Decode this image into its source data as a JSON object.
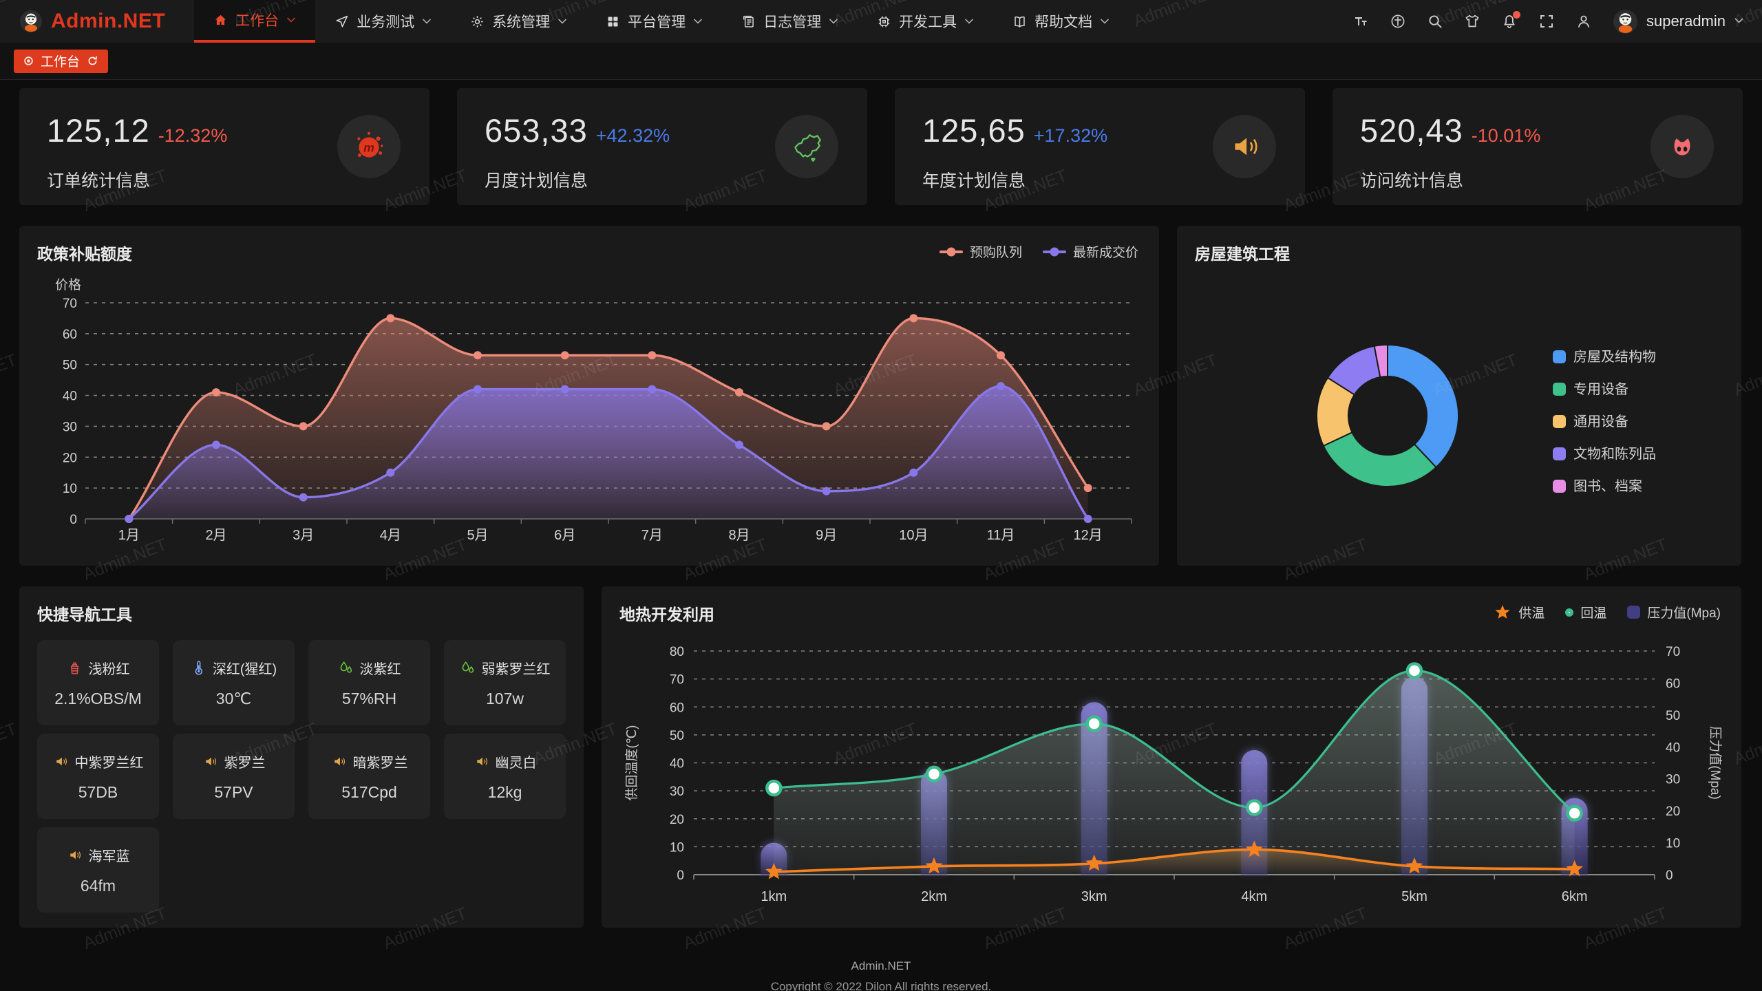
{
  "navbar": {
    "logo_text": "Admin.NET",
    "menu": [
      {
        "label": "工作台",
        "icon": "home-icon",
        "active": true
      },
      {
        "label": "业务测试",
        "icon": "send-icon",
        "active": false
      },
      {
        "label": "系统管理",
        "icon": "gear-icon",
        "active": false
      },
      {
        "label": "平台管理",
        "icon": "grid-icon",
        "active": false
      },
      {
        "label": "日志管理",
        "icon": "log-icon",
        "active": false
      },
      {
        "label": "开发工具",
        "icon": "cpu-icon",
        "active": false
      },
      {
        "label": "帮助文档",
        "icon": "book-icon",
        "active": false
      }
    ],
    "action_icons": [
      "font-size-icon",
      "language-icon",
      "search-icon",
      "theme-icon",
      "bell-icon",
      "fullscreen-icon",
      "user-icon"
    ],
    "notification_dot_on": "bell-icon",
    "username": "superadmin"
  },
  "tabbar": {
    "tabs": [
      {
        "label": "工作台",
        "active": true,
        "icons": [
          "dot-icon",
          "refresh-icon"
        ]
      }
    ]
  },
  "stat_cards": [
    {
      "value": "125,12",
      "delta": "-12.32%",
      "trend": "down",
      "label": "订单统计信息",
      "icon": "meetup-icon"
    },
    {
      "value": "653,33",
      "delta": "+42.32%",
      "trend": "up",
      "label": "月度计划信息",
      "icon": "china-map-icon"
    },
    {
      "value": "125,65",
      "delta": "+17.32%",
      "trend": "up",
      "label": "年度计划信息",
      "icon": "speaker-icon"
    },
    {
      "value": "520,43",
      "delta": "-10.01%",
      "trend": "down",
      "label": "访问统计信息",
      "icon": "cat-icon"
    }
  ],
  "panels": {
    "subsidy": {
      "title": "政策补贴额度"
    },
    "building": {
      "title": "房屋建筑工程"
    },
    "quick_nav": {
      "title": "快捷导航工具"
    },
    "geothermal": {
      "title": "地热开发利用"
    }
  },
  "chart_data": [
    {
      "type": "area",
      "title": "政策补贴额度",
      "ylabel": "价格",
      "categories": [
        "1月",
        "2月",
        "3月",
        "4月",
        "5月",
        "6月",
        "7月",
        "8月",
        "9月",
        "10月",
        "11月",
        "12月"
      ],
      "ylim": [
        0,
        70
      ],
      "ytick_step": 10,
      "grid": "dashed",
      "legend_position": "top-right",
      "series": [
        {
          "name": "预购队列",
          "color": "#EE8C7B",
          "values": [
            0,
            41,
            30,
            65,
            53,
            53,
            53,
            41,
            30,
            65,
            53,
            10
          ]
        },
        {
          "name": "最新成交价",
          "color": "#8877E8",
          "values": [
            0,
            24,
            7,
            15,
            42,
            42,
            42,
            24,
            9,
            15,
            43,
            0
          ]
        }
      ]
    },
    {
      "type": "pie",
      "title": "房屋建筑工程",
      "donut": true,
      "legend_position": "right",
      "labels": [
        "房屋及结构物",
        "专用设备",
        "通用设备",
        "文物和陈列品",
        "图书、档案"
      ],
      "values": [
        38,
        30,
        16,
        13,
        3
      ],
      "colors": [
        "#4E9BF5",
        "#3EC18B",
        "#F8C36D",
        "#8E7CF2",
        "#E78EE4"
      ]
    },
    {
      "type": "combo",
      "title": "地热开发利用",
      "categories": [
        "1km",
        "2km",
        "3km",
        "4km",
        "5km",
        "6km"
      ],
      "left_axis": {
        "label": "供回温度(℃)",
        "range": [
          0,
          80
        ],
        "tick_step": 10
      },
      "right_axis": {
        "label": "压力值(Mpa)",
        "range": [
          0,
          70
        ],
        "tick_step": 10
      },
      "grid": "dashed",
      "legend_position": "top-right",
      "series": [
        {
          "name": "供温",
          "chart": "line",
          "marker": "star",
          "axis": "left",
          "color": "#F5821F",
          "values": [
            1,
            3,
            4,
            9,
            3,
            2
          ]
        },
        {
          "name": "回温",
          "chart": "line",
          "marker": "circle",
          "axis": "left",
          "color": "#3CBE8E",
          "values": [
            31,
            36,
            54,
            24,
            73,
            22
          ]
        },
        {
          "name": "压力值(Mpa)",
          "chart": "bar",
          "axis": "right",
          "color": "#52509E",
          "values": [
            10,
            33,
            54,
            39,
            62,
            24
          ]
        }
      ]
    }
  ],
  "quick_nav_items": [
    {
      "name": "浅粉红",
      "value": "2.1%OBS/M",
      "icon": "factory-icon",
      "icon_color": "red"
    },
    {
      "name": "深红(猩红)",
      "value": "30℃",
      "icon": "thermometer-icon",
      "icon_color": "blue"
    },
    {
      "name": "淡紫红",
      "value": "57%RH",
      "icon": "droplet-icon",
      "icon_color": "green"
    },
    {
      "name": "弱紫罗兰红",
      "value": "107w",
      "icon": "droplet-icon",
      "icon_color": "green"
    },
    {
      "name": "中紫罗兰红",
      "value": "57DB",
      "icon": "speaker-icon",
      "icon_color": "orange"
    },
    {
      "name": "紫罗兰",
      "value": "57PV",
      "icon": "speaker-icon",
      "icon_color": "orange"
    },
    {
      "name": "暗紫罗兰",
      "value": "517Cpd",
      "icon": "speaker-icon",
      "icon_color": "orange"
    },
    {
      "name": "幽灵白",
      "value": "12kg",
      "icon": "speaker-icon",
      "icon_color": "orange"
    },
    {
      "name": "海军蓝",
      "value": "64fm",
      "icon": "speaker-icon",
      "icon_color": "orange"
    }
  ],
  "footer": {
    "line1": "Admin.NET",
    "line2": "Copyright © 2022 Dilon All rights reserved."
  },
  "watermark_text": "Admin.NET",
  "colors": {
    "accent": "#DE3A1D",
    "delta_down": "#F2594B",
    "delta_up": "#4A7BEA",
    "panel_bg": "#1A1A1A"
  }
}
